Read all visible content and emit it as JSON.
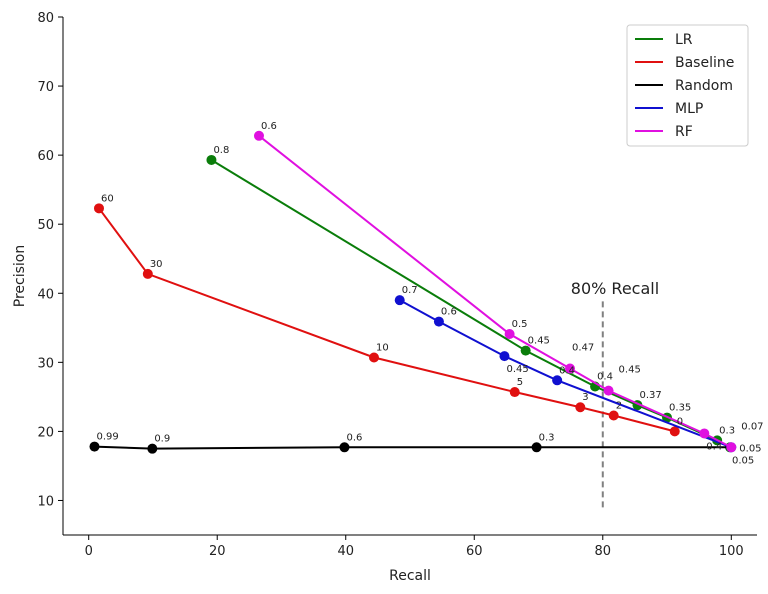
{
  "chart_data": {
    "type": "line",
    "title": "",
    "xlabel": "Recall",
    "ylabel": "Precision",
    "xlim": [
      -4,
      104
    ],
    "ylim": [
      5,
      80
    ],
    "xticks": [
      0,
      20,
      40,
      60,
      80,
      100
    ],
    "yticks": [
      10,
      20,
      30,
      40,
      50,
      60,
      70,
      80
    ],
    "grid": false,
    "legend_position": "top-right",
    "annotation": {
      "text": "80% Recall",
      "x": 80,
      "y_range": [
        9,
        39
      ],
      "color": "#808080"
    },
    "series": [
      {
        "name": "LR",
        "color": "#0a7d0a",
        "points": [
          [
            19.1,
            59.3
          ],
          [
            68.0,
            31.7
          ],
          [
            78.8,
            26.5
          ],
          [
            85.4,
            23.8
          ],
          [
            90.0,
            22.0
          ],
          [
            97.8,
            18.7
          ],
          [
            99.8,
            17.7
          ]
        ],
        "labels": [
          "0.8",
          "0.45",
          "0.4",
          "0.37",
          "0.35",
          "0.3",
          "0.05"
        ]
      },
      {
        "name": "Baseline",
        "color": "#e01010",
        "points": [
          [
            1.6,
            52.3
          ],
          [
            9.2,
            42.8
          ],
          [
            44.4,
            30.7
          ],
          [
            66.3,
            25.7
          ],
          [
            76.5,
            23.5
          ],
          [
            81.7,
            22.3
          ],
          [
            91.2,
            20.0
          ]
        ],
        "labels": [
          "60",
          "30",
          "10",
          "5",
          "3",
          "2",
          "0"
        ]
      },
      {
        "name": "Random",
        "color": "#000000",
        "points": [
          [
            0.9,
            17.8
          ],
          [
            9.9,
            17.5
          ],
          [
            39.8,
            17.7
          ],
          [
            69.7,
            17.7
          ]
        ],
        "labels": [
          "0.99",
          "0.9",
          "0.6",
          "0.3"
        ],
        "line_end": [
          100,
          17.7
        ]
      },
      {
        "name": "MLP",
        "color": "#1010d0",
        "points": [
          [
            48.4,
            39.0
          ],
          [
            54.5,
            35.9
          ],
          [
            64.7,
            30.9
          ],
          [
            72.9,
            27.4
          ],
          [
            100,
            17.7
          ]
        ],
        "labels": [
          "0.7",
          "0.6",
          "0.45",
          "0.4",
          "0.05"
        ]
      },
      {
        "name": "RF",
        "color": "#e010e0",
        "points": [
          [
            26.5,
            62.8
          ],
          [
            65.5,
            34.1
          ],
          [
            74.9,
            29.1
          ],
          [
            80.9,
            25.9
          ],
          [
            95.8,
            19.7
          ],
          [
            100,
            17.7
          ]
        ],
        "labels": [
          "0.6",
          "0.5",
          "0.47",
          "0.45",
          "0.4",
          "0.07"
        ]
      }
    ]
  }
}
